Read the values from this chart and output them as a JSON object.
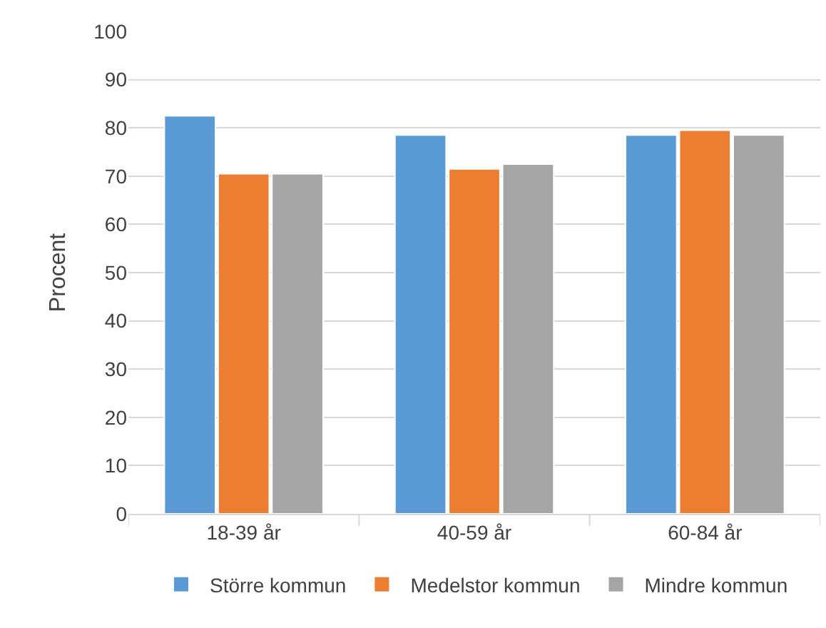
{
  "chart_data": {
    "type": "bar",
    "ylabel": "Procent",
    "categories": [
      "18-39 år",
      "40-59 år",
      "60-84 år"
    ],
    "series": [
      {
        "name": "Större kommun",
        "color": "#5b9bd5",
        "values": [
          82.5,
          78.5,
          78.5
        ]
      },
      {
        "name": "Medelstor kommun",
        "color": "#ed7d31",
        "values": [
          70.5,
          71.5,
          79.5
        ]
      },
      {
        "name": "Mindre kommun",
        "color": "#a5a5a5",
        "values": [
          70.5,
          72.5,
          78.5
        ]
      }
    ],
    "ylim": [
      0,
      100
    ],
    "yticks": [
      0,
      10,
      20,
      30,
      40,
      50,
      60,
      70,
      80,
      90,
      100
    ],
    "grid": "y",
    "legend": "bottom"
  }
}
